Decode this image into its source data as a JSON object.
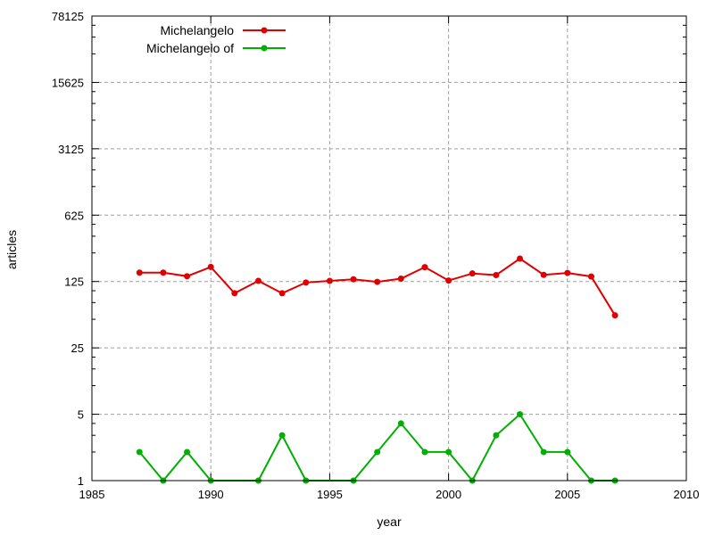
{
  "chart_data": {
    "type": "line",
    "title": "",
    "xlabel": "year",
    "ylabel": "articles",
    "xlim": [
      1985,
      2010
    ],
    "ylim": [
      1,
      78125
    ],
    "y_scale": "log",
    "x_ticks": [
      1985,
      1990,
      1995,
      2000,
      2005,
      2010
    ],
    "y_ticks": [
      1,
      5,
      25,
      125,
      625,
      3125,
      15625,
      78125
    ],
    "grid": true,
    "legend_position": "top-left",
    "series": [
      {
        "name": "Michelangelo",
        "color": "#e00000",
        "x": [
          1987,
          1988,
          1989,
          1990,
          1991,
          1992,
          1993,
          1994,
          1995,
          1996,
          1997,
          1998,
          1999,
          2000,
          2001,
          2002,
          2003,
          2004,
          2005,
          2006,
          2007
        ],
        "y": [
          155,
          155,
          142,
          178,
          94,
          127,
          94,
          122,
          127,
          132,
          124,
          134,
          177,
          128,
          152,
          146,
          218,
          147,
          154,
          141,
          55
        ]
      },
      {
        "name": "Michelangelo of",
        "color": "#00b000",
        "x": [
          1987,
          1988,
          1989,
          1990,
          1992,
          1993,
          1994,
          1996,
          1997,
          1998,
          1999,
          2000,
          2001,
          2002,
          2003,
          2004,
          2005,
          2006,
          2007
        ],
        "y": [
          2,
          1,
          2,
          1,
          1,
          3,
          1,
          1,
          2,
          4,
          2,
          2,
          1,
          3,
          5,
          2,
          2,
          1,
          1
        ]
      }
    ]
  }
}
